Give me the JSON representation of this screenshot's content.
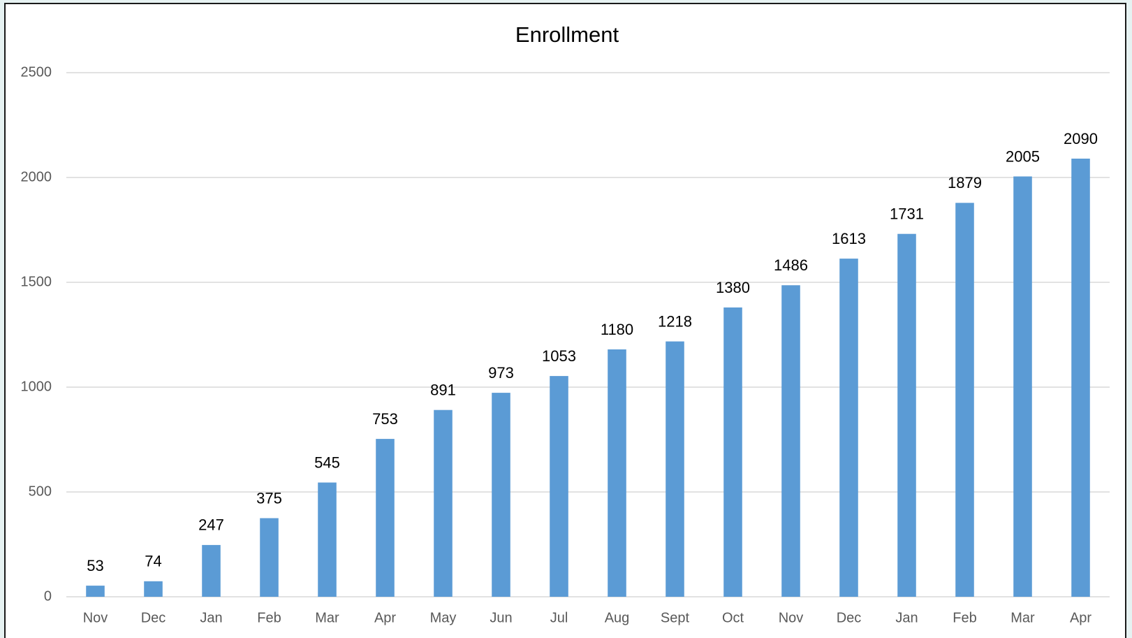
{
  "chart_data": {
    "type": "bar",
    "title": "Enrollment",
    "categories": [
      "Nov",
      "Dec",
      "Jan",
      "Feb",
      "Mar",
      "Apr",
      "May",
      "Jun",
      "Jul",
      "Aug",
      "Sept",
      "Oct",
      "Nov",
      "Dec",
      "Jan",
      "Feb",
      "Mar",
      "Apr"
    ],
    "values": [
      53,
      74,
      247,
      375,
      545,
      753,
      891,
      973,
      1053,
      1180,
      1218,
      1380,
      1486,
      1613,
      1731,
      1879,
      2005,
      2090
    ],
    "color": "#5b9bd5",
    "ylim": [
      0,
      2500
    ],
    "yticks": [
      0,
      500,
      1000,
      1500,
      2000,
      2500
    ],
    "grid": true
  }
}
